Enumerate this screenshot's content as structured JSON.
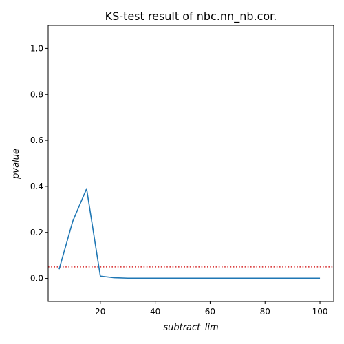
{
  "chart_data": {
    "type": "line",
    "title": "KS-test result of nbc.nn_nb.cor.",
    "xlabel": "subtract_lim",
    "ylabel": "pvalue",
    "xlim": [
      1,
      105
    ],
    "ylim": [
      -0.1,
      1.1
    ],
    "xticks": [
      20,
      40,
      60,
      80,
      100
    ],
    "xtick_labels": [
      "20",
      "40",
      "60",
      "80",
      "100"
    ],
    "yticks": [
      0.0,
      0.2,
      0.4,
      0.6,
      0.8,
      1.0
    ],
    "ytick_labels": [
      "0.0",
      "0.2",
      "0.4",
      "0.6",
      "0.8",
      "1.0"
    ],
    "grid": false,
    "series": [
      {
        "color": "#1f77b4",
        "style": "solid",
        "x": [
          5,
          10,
          15,
          20,
          25,
          30,
          35,
          40,
          45,
          50,
          55,
          60,
          65,
          70,
          75,
          80,
          85,
          90,
          95,
          100
        ],
        "y": [
          0.04,
          0.25,
          0.39,
          0.01,
          0.003,
          0.001,
          0.001,
          0.001,
          0.001,
          0.001,
          0.001,
          0.001,
          0.001,
          0.001,
          0.001,
          0.001,
          0.001,
          0.001,
          0.001,
          0.001
        ]
      }
    ],
    "reference_lines": [
      {
        "orientation": "horizontal",
        "y": 0.05,
        "color": "#d62728",
        "style": "dotted"
      }
    ]
  }
}
